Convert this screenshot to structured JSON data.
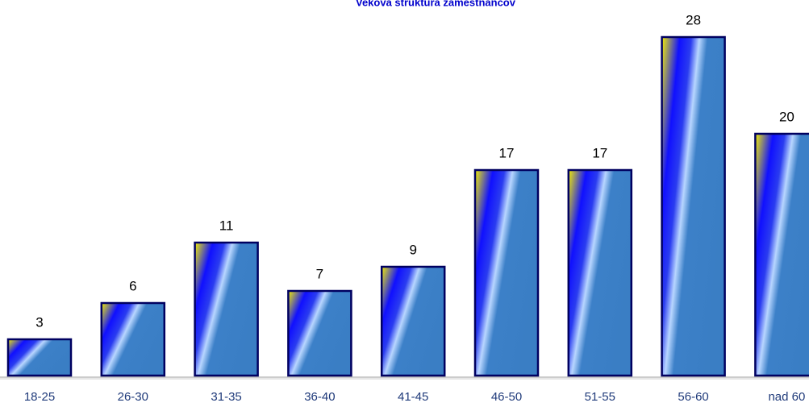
{
  "chart_data": {
    "type": "bar",
    "title": "Veková štruktúra  zamestnancov",
    "categories": [
      "18-25",
      "26-30",
      "31-35",
      "36-40",
      "41-45",
      "46-50",
      "51-55",
      "56-60",
      "nad 60"
    ],
    "values": [
      3,
      6,
      11,
      7,
      9,
      17,
      17,
      28,
      20
    ]
  }
}
